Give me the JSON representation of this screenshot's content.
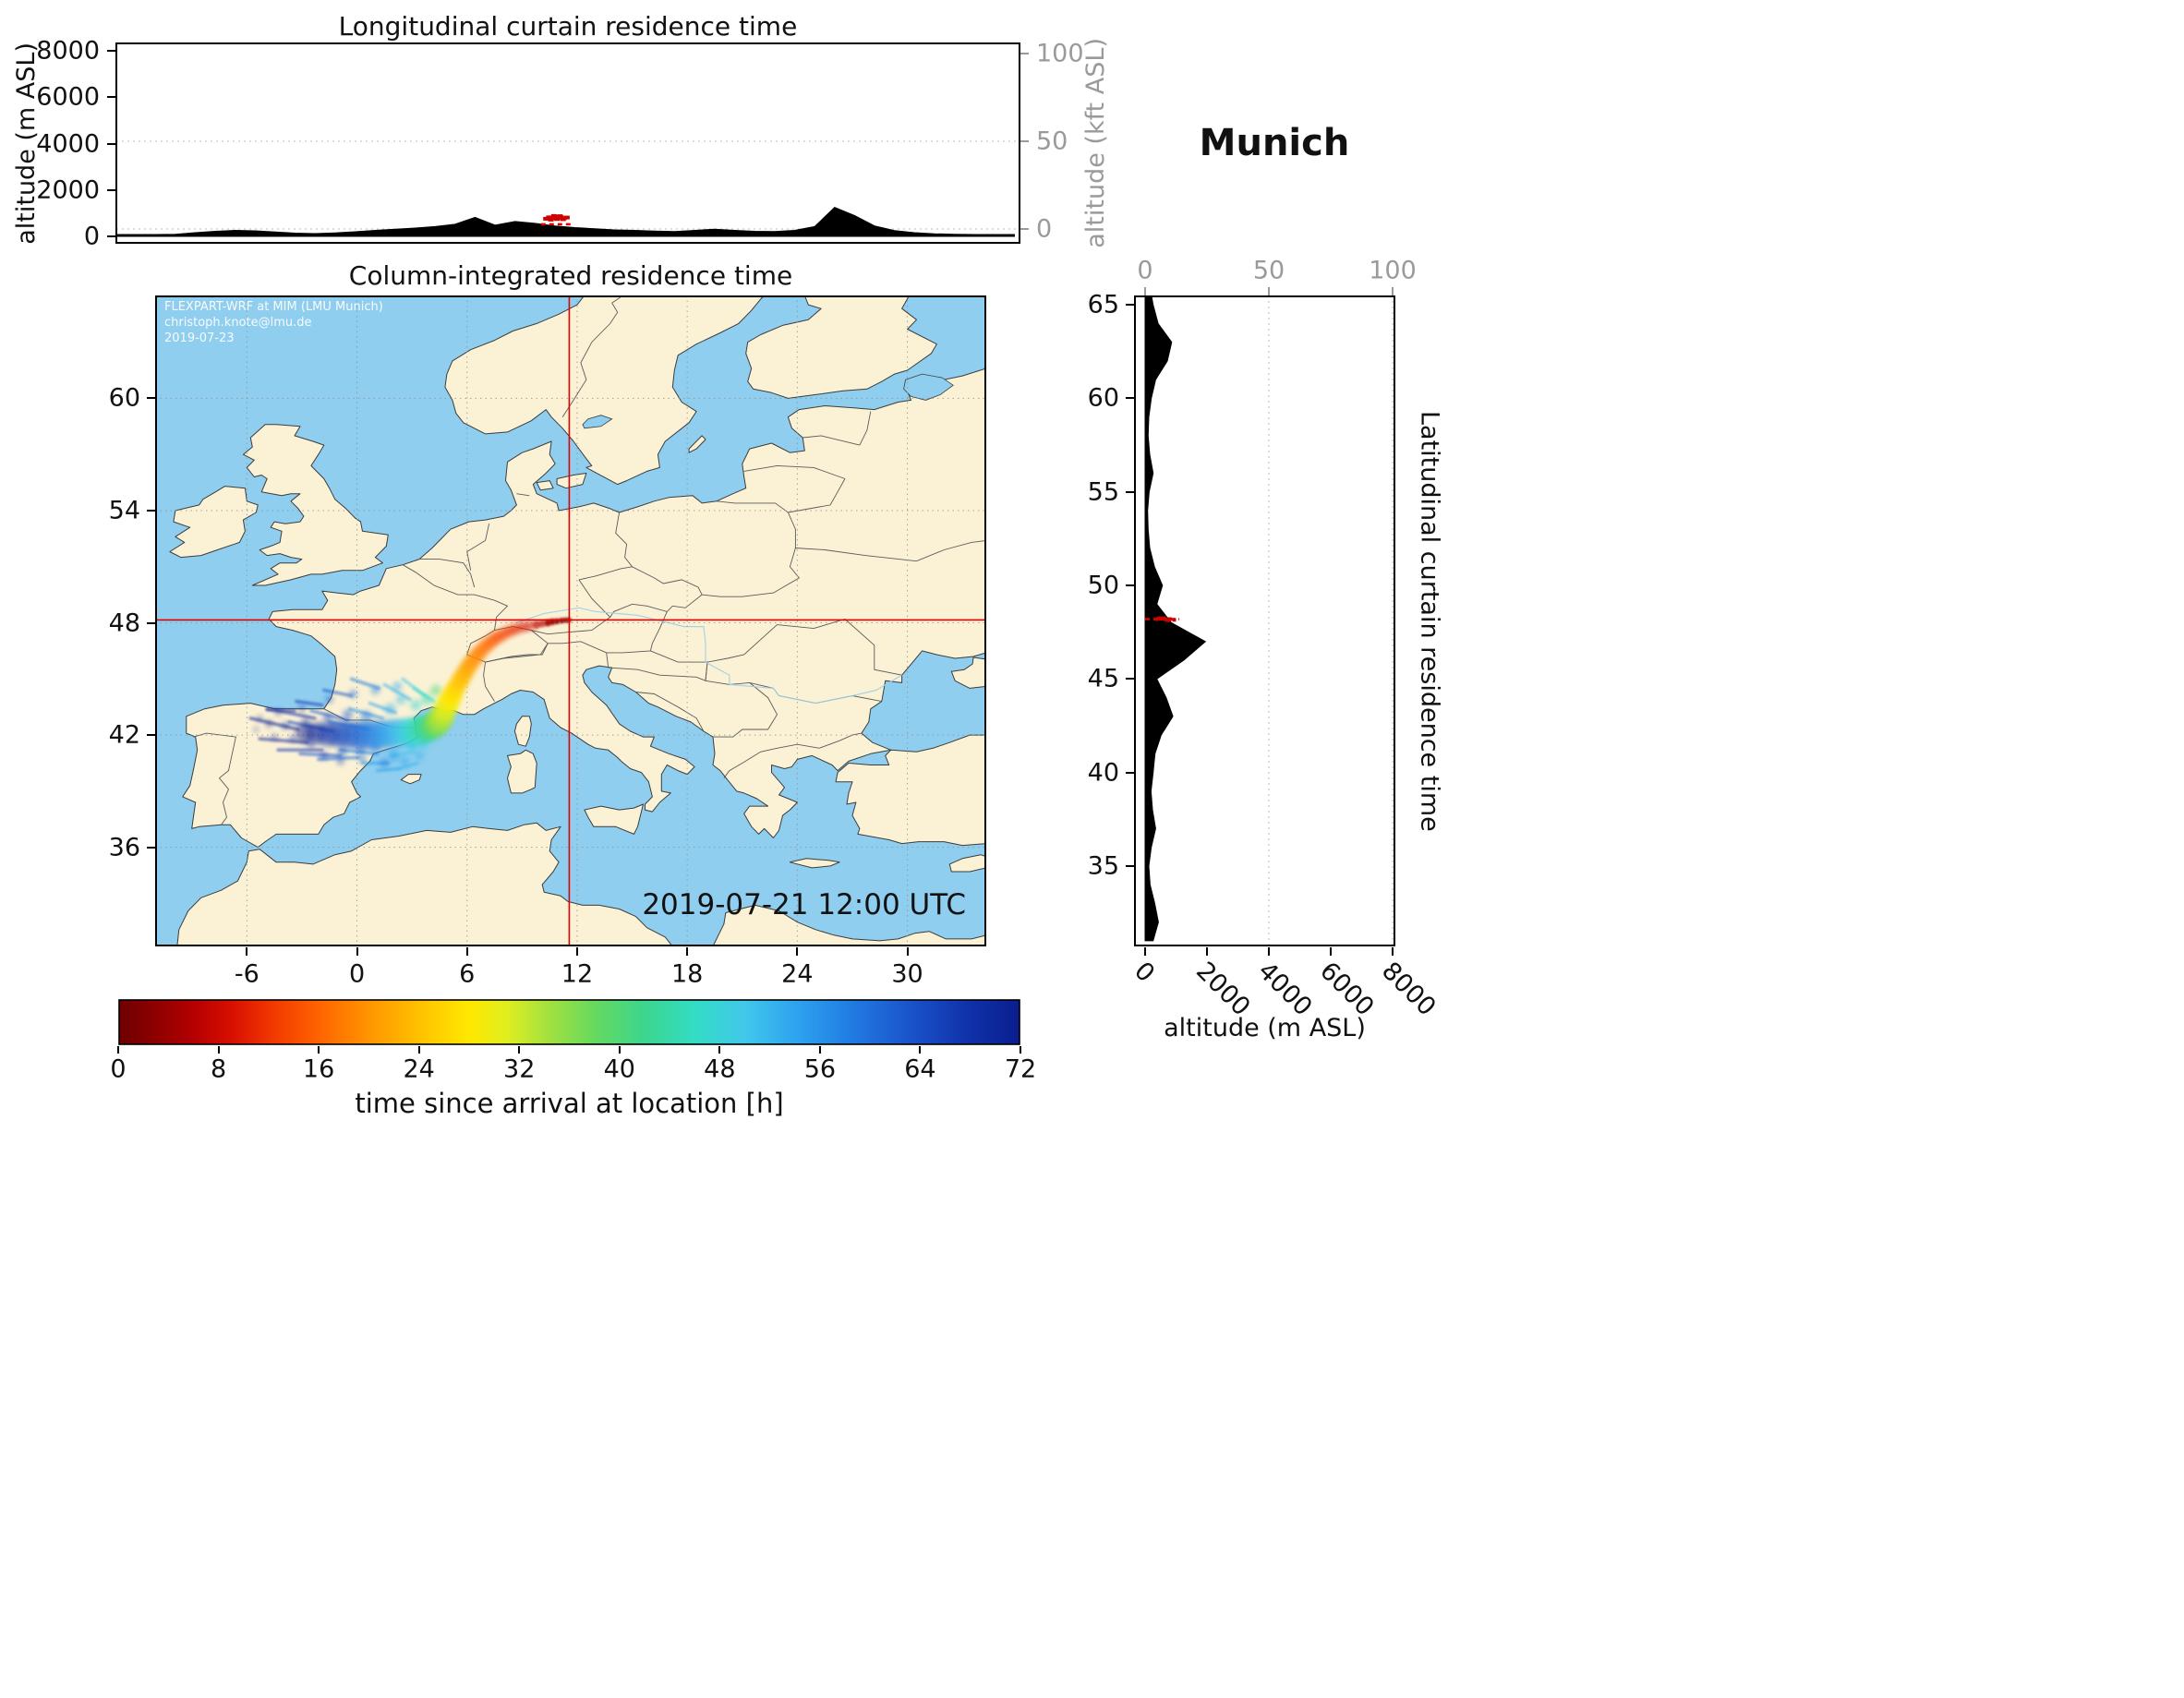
{
  "figure": {
    "station": "Munich",
    "timestamp": "2019-07-21 12:00 UTC",
    "watermark": [
      "FLEXPART-WRF at MIM (LMU Munich)",
      "christoph.knote@lmu.de",
      "2019-07-23"
    ]
  },
  "top_panel": {
    "title": "Longitudinal curtain residence time",
    "ylabel_left": "altitude (m ASL)",
    "ylabel_right": "altitude (kft ASL)",
    "yticks_left": [
      0,
      2000,
      4000,
      6000,
      8000
    ],
    "yticks_right": [
      0,
      50,
      100
    ]
  },
  "map_panel": {
    "title": "Column-integrated residence time",
    "xticks": [
      -6,
      0,
      6,
      12,
      18,
      24,
      30
    ],
    "yticks": [
      36,
      42,
      48,
      54,
      60
    ]
  },
  "right_panel": {
    "title": "Latitudinal curtain residence time",
    "xlabel": "altitude (m ASL)",
    "xticks_bottom": [
      0,
      2000,
      4000,
      6000,
      8000
    ],
    "xticks_top": [
      0,
      50,
      100
    ],
    "yticks": [
      35,
      40,
      45,
      50,
      55,
      60,
      65
    ]
  },
  "colorbar": {
    "label": "time since arrival at location [h]",
    "ticks": [
      0,
      8,
      16,
      24,
      32,
      40,
      48,
      56,
      64,
      72
    ],
    "range": [
      0,
      72
    ],
    "stops": [
      [
        0,
        "#6e0000"
      ],
      [
        3,
        "#8f0000"
      ],
      [
        6,
        "#b40000"
      ],
      [
        9,
        "#d80f00"
      ],
      [
        12,
        "#f03500"
      ],
      [
        16,
        "#ff6400"
      ],
      [
        20,
        "#ff9500"
      ],
      [
        24,
        "#ffc100"
      ],
      [
        28,
        "#ffe800"
      ],
      [
        31,
        "#dfee20"
      ],
      [
        34,
        "#a9e23c"
      ],
      [
        38,
        "#66d95e"
      ],
      [
        42,
        "#3cd68e"
      ],
      [
        46,
        "#33dcc4"
      ],
      [
        50,
        "#41c8ea"
      ],
      [
        54,
        "#2fa4ef"
      ],
      [
        58,
        "#2280e4"
      ],
      [
        63,
        "#1a55cc"
      ],
      [
        68,
        "#1031aa"
      ],
      [
        72,
        "#0a1e8e"
      ]
    ]
  },
  "chart_data": [
    {
      "id": "longitudinal_curtain",
      "type": "area",
      "title": "Longitudinal curtain residence time",
      "xlabel": "longitude",
      "ylabel": "altitude (m ASL)",
      "ylim_m": [
        0,
        8000
      ],
      "x_lon": [
        -11,
        -10,
        -9,
        -8,
        -7,
        -6,
        -5,
        -4,
        -3,
        -2,
        -1,
        0,
        1,
        2,
        3,
        4,
        5,
        6,
        7,
        8,
        9,
        10,
        11,
        12,
        13,
        14,
        15,
        16,
        17,
        18,
        19,
        20,
        21,
        22,
        23,
        24,
        25,
        26,
        27,
        28,
        29,
        30,
        31,
        32,
        33,
        34
      ],
      "terrain_m": [
        0,
        10,
        30,
        90,
        160,
        220,
        260,
        240,
        190,
        140,
        120,
        150,
        200,
        260,
        310,
        360,
        420,
        520,
        820,
        480,
        640,
        560,
        450,
        380,
        330,
        280,
        260,
        230,
        210,
        260,
        310,
        260,
        220,
        210,
        260,
        420,
        1250,
        900,
        450,
        250,
        160,
        110,
        90,
        60,
        40,
        25
      ],
      "red_marker_points_lon_alt": [
        [
          10.55,
          760
        ],
        [
          10.7,
          820
        ],
        [
          10.85,
          790
        ],
        [
          11.0,
          840
        ],
        [
          11.15,
          800
        ],
        [
          11.3,
          830
        ],
        [
          11.45,
          780
        ],
        [
          11.6,
          810
        ],
        [
          10.8,
          720
        ],
        [
          11.1,
          750
        ],
        [
          11.4,
          740
        ],
        [
          10.95,
          880
        ],
        [
          11.25,
          870
        ]
      ],
      "red_dashed_line": {
        "lon_range": [
          10.3,
          11.9
        ],
        "alt_m": 520
      }
    },
    {
      "id": "column_integrated_map",
      "type": "heatmap",
      "title": "Column-integrated residence time",
      "extent": {
        "lon": [
          -11,
          34.3
        ],
        "lat": [
          30.7,
          65.5
        ]
      },
      "crosshair": {
        "lon": 11.57,
        "lat": 48.15
      },
      "value_units": "time since arrival at location [h]",
      "plume_points_lon_lat_t_r": [
        [
          11.55,
          48.15,
          0,
          0.14
        ],
        [
          11.35,
          48.14,
          1,
          0.14
        ],
        [
          11.15,
          48.12,
          2,
          0.15
        ],
        [
          10.9,
          48.08,
          3,
          0.16
        ],
        [
          10.65,
          48.05,
          4,
          0.18
        ],
        [
          10.4,
          48.0,
          5,
          0.19
        ],
        [
          10.1,
          47.95,
          6,
          0.2
        ],
        [
          9.8,
          47.9,
          7,
          0.22
        ],
        [
          9.5,
          47.85,
          8,
          0.23
        ],
        [
          9.2,
          47.8,
          9,
          0.25
        ],
        [
          8.9,
          47.75,
          10,
          0.26
        ],
        [
          8.6,
          47.65,
          11,
          0.28
        ],
        [
          8.3,
          47.55,
          12,
          0.3
        ],
        [
          8.0,
          47.4,
          13,
          0.32
        ],
        [
          7.7,
          47.25,
          14,
          0.33
        ],
        [
          7.45,
          47.1,
          15,
          0.35
        ],
        [
          7.2,
          46.9,
          16,
          0.36
        ],
        [
          6.95,
          46.7,
          17,
          0.38
        ],
        [
          6.7,
          46.45,
          18,
          0.4
        ],
        [
          6.5,
          46.2,
          19,
          0.42
        ],
        [
          6.3,
          45.95,
          20,
          0.43
        ],
        [
          6.1,
          45.7,
          21,
          0.44
        ],
        [
          5.95,
          45.45,
          22,
          0.45
        ],
        [
          5.8,
          45.2,
          23,
          0.46
        ],
        [
          5.65,
          44.95,
          24,
          0.47
        ],
        [
          5.5,
          44.7,
          25,
          0.48
        ],
        [
          5.35,
          44.45,
          26,
          0.5
        ],
        [
          5.2,
          44.2,
          27,
          0.52
        ],
        [
          5.1,
          43.95,
          28,
          0.54
        ],
        [
          5.0,
          43.75,
          29,
          0.55
        ],
        [
          4.9,
          43.55,
          30,
          0.57
        ],
        [
          4.8,
          43.35,
          31,
          0.58
        ],
        [
          4.72,
          43.15,
          32,
          0.6
        ],
        [
          4.62,
          43.0,
          33,
          0.62
        ],
        [
          4.55,
          42.85,
          34,
          0.64
        ],
        [
          4.45,
          42.72,
          35,
          0.65
        ],
        [
          4.35,
          42.6,
          36,
          0.66
        ],
        [
          4.2,
          42.5,
          38,
          0.68
        ],
        [
          4.0,
          42.42,
          40,
          0.7
        ],
        [
          3.75,
          42.35,
          42,
          0.7
        ],
        [
          3.5,
          42.3,
          44,
          0.72
        ],
        [
          3.2,
          42.25,
          46,
          0.72
        ],
        [
          2.9,
          42.2,
          48,
          0.72
        ],
        [
          2.55,
          42.15,
          50,
          0.74
        ],
        [
          2.2,
          42.1,
          52,
          0.76
        ],
        [
          1.8,
          42.05,
          54,
          0.78
        ],
        [
          1.4,
          42.0,
          56,
          0.78
        ],
        [
          0.95,
          42.0,
          58,
          0.78
        ],
        [
          0.5,
          42.0,
          60,
          0.76
        ],
        [
          0.0,
          42.0,
          62,
          0.74
        ],
        [
          -0.5,
          42.0,
          64,
          0.72
        ],
        [
          -1.05,
          42.05,
          66,
          0.7
        ],
        [
          -1.6,
          42.05,
          68,
          0.66
        ],
        [
          -2.2,
          42.1,
          70,
          0.6
        ],
        [
          -2.8,
          42.1,
          72,
          0.55
        ],
        [
          1.0,
          41.3,
          57,
          0.3
        ],
        [
          0.2,
          41.2,
          61,
          0.28
        ],
        [
          -0.8,
          41.1,
          64,
          0.25
        ],
        [
          -1.8,
          40.9,
          67,
          0.22
        ],
        [
          2.0,
          40.9,
          55,
          0.3
        ],
        [
          1.5,
          40.5,
          58,
          0.26
        ],
        [
          2.6,
          40.6,
          53,
          0.28
        ],
        [
          0.5,
          43.0,
          59,
          0.3
        ],
        [
          -0.5,
          43.1,
          62,
          0.27
        ],
        [
          -1.6,
          42.9,
          65,
          0.24
        ],
        [
          -2.8,
          42.7,
          68,
          0.22
        ],
        [
          -3.9,
          42.5,
          70,
          0.2
        ],
        [
          -4.8,
          42.6,
          72,
          0.18
        ],
        [
          -0.2,
          44.2,
          61,
          0.22
        ],
        [
          1.0,
          44.4,
          57,
          0.24
        ],
        [
          2.2,
          44.6,
          53,
          0.26
        ],
        [
          -1.5,
          43.9,
          64,
          0.2
        ],
        [
          -3.0,
          43.4,
          68,
          0.18
        ],
        [
          -4.3,
          43.2,
          71,
          0.16
        ],
        [
          -5.3,
          42.9,
          72,
          0.14
        ],
        [
          3.0,
          41.4,
          50,
          0.3
        ],
        [
          3.4,
          40.9,
          52,
          0.26
        ],
        [
          2.6,
          41.8,
          49,
          0.35
        ],
        [
          1.8,
          43.4,
          53,
          0.3
        ],
        [
          3.2,
          43.6,
          48,
          0.3
        ],
        [
          2.4,
          43.9,
          51,
          0.28
        ],
        [
          3.8,
          43.9,
          45,
          0.3
        ],
        [
          4.3,
          44.4,
          40,
          0.3
        ],
        [
          4.0,
          41.9,
          46,
          0.3
        ],
        [
          3.6,
          41.5,
          48,
          0.28
        ],
        [
          -2.5,
          41.5,
          68,
          0.2
        ],
        [
          -3.5,
          41.8,
          70,
          0.18
        ],
        [
          -4.5,
          41.9,
          72,
          0.15
        ],
        [
          -5.5,
          42.3,
          72,
          0.12
        ],
        [
          0.3,
          40.7,
          60,
          0.22
        ],
        [
          -0.9,
          40.6,
          64,
          0.2
        ]
      ],
      "plume_streaks_lon1_lat1_lon2_lat2_t": [
        [
          -5.8,
          42.9,
          -3.2,
          42.3,
          71
        ],
        [
          -5.3,
          41.8,
          -2.7,
          41.6,
          70
        ],
        [
          -4.9,
          43.4,
          -2.3,
          42.9,
          69
        ],
        [
          -4.3,
          41.2,
          -1.9,
          41.2,
          67
        ],
        [
          -3.7,
          42.7,
          -1.3,
          42.2,
          65
        ],
        [
          -3.1,
          41.0,
          -0.9,
          40.9,
          63
        ],
        [
          -2.5,
          43.3,
          -0.5,
          42.8,
          62
        ],
        [
          -2.1,
          40.7,
          0.1,
          40.8,
          60
        ],
        [
          -1.5,
          42.7,
          0.7,
          42.3,
          58
        ],
        [
          -0.9,
          41.2,
          1.1,
          41.0,
          57
        ],
        [
          -0.4,
          43.4,
          1.4,
          42.9,
          56
        ],
        [
          0.3,
          40.5,
          1.7,
          40.5,
          55
        ],
        [
          0.7,
          43.7,
          2.1,
          43.2,
          54
        ],
        [
          1.1,
          40.1,
          2.3,
          40.2,
          54
        ],
        [
          1.5,
          44.7,
          2.9,
          43.9,
          52
        ],
        [
          1.9,
          40.9,
          3.1,
          41.1,
          50
        ],
        [
          2.5,
          45.0,
          3.7,
          44.1,
          50
        ],
        [
          2.3,
          40.2,
          3.3,
          40.5,
          52
        ],
        [
          2.9,
          41.4,
          3.9,
          41.7,
          48
        ],
        [
          3.1,
          44.5,
          4.2,
          43.8,
          46
        ],
        [
          -0.3,
          45.0,
          1.2,
          44.5,
          59
        ],
        [
          -1.8,
          44.4,
          -0.3,
          44.1,
          63
        ],
        [
          -3.3,
          43.8,
          -1.9,
          43.6,
          67
        ],
        [
          -4.9,
          43.35,
          -3.4,
          43.3,
          70
        ]
      ]
    },
    {
      "id": "latitudinal_curtain",
      "type": "area",
      "title": "Latitudinal curtain residence time",
      "xlabel": "altitude (m ASL)",
      "ylabel": "latitude",
      "xlim_m": [
        0,
        8000
      ],
      "lat": [
        31,
        32,
        33,
        34,
        35,
        36,
        37,
        38,
        39,
        40,
        41,
        42,
        43,
        44,
        45,
        46,
        47,
        48,
        49,
        50,
        51,
        52,
        53,
        54,
        55,
        56,
        57,
        58,
        59,
        60,
        61,
        62,
        63,
        64,
        65,
        66
      ],
      "terrain_m": [
        260,
        430,
        310,
        160,
        120,
        200,
        340,
        240,
        190,
        260,
        320,
        520,
        900,
        680,
        380,
        1250,
        1950,
        850,
        380,
        560,
        300,
        150,
        100,
        80,
        130,
        260,
        150,
        100,
        120,
        200,
        340,
        720,
        860,
        420,
        260,
        150
      ],
      "red_marker_points_alt_lat": [
        [
          380,
          48.2
        ],
        [
          520,
          48.22
        ],
        [
          660,
          48.18
        ],
        [
          800,
          48.2
        ],
        [
          940,
          48.16
        ],
        [
          460,
          48.25
        ],
        [
          600,
          48.24
        ],
        [
          740,
          48.14
        ]
      ],
      "red_dashed_line": {
        "lat": 48.2,
        "alt_range": [
          0,
          1100
        ]
      }
    }
  ]
}
